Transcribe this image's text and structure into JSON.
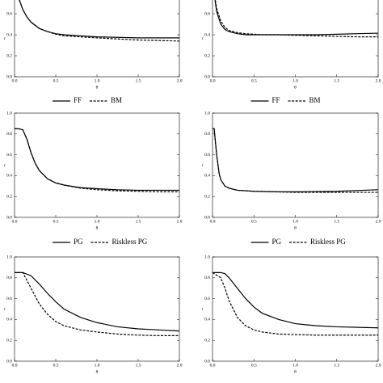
{
  "chart_data": [
    {
      "type": "line",
      "xlabel": "θ",
      "ylabel": "r",
      "xlim": [
        0,
        2
      ],
      "ylim": [
        0,
        1
      ],
      "xticks": [
        {
          "value": 0,
          "label": "0.0"
        },
        {
          "value": 0.5,
          "label": "0.5"
        },
        {
          "value": 1,
          "label": "1.0"
        },
        {
          "value": 1.5,
          "label": "1.5"
        },
        {
          "value": 2,
          "label": "2.0"
        }
      ],
      "yticks": [
        {
          "value": 0,
          "label": "0.0"
        },
        {
          "value": 0.2,
          "label": "0.2"
        },
        {
          "value": 0.4,
          "label": "0.4"
        },
        {
          "value": 0.6,
          "label": "0.6"
        },
        {
          "value": 0.8,
          "label": "0.8"
        },
        {
          "value": 1,
          "label": "1.0"
        }
      ],
      "x": [
        0,
        0.05,
        0.1,
        0.15,
        0.2,
        0.3,
        0.4,
        0.5,
        0.6,
        0.8,
        1.0,
        1.25,
        1.5,
        1.75,
        2.0
      ],
      "series": [
        {
          "name": "FF",
          "color": "#000000",
          "dashed": false,
          "values": [
            0.9,
            0.75,
            0.64,
            0.57,
            0.52,
            0.46,
            0.43,
            0.41,
            0.4,
            0.39,
            0.38,
            0.375,
            0.37,
            0.37,
            0.37
          ]
        },
        {
          "name": "BM",
          "color": "#000000",
          "dashed": true,
          "values": [
            0.9,
            0.75,
            0.64,
            0.57,
            0.52,
            0.46,
            0.43,
            0.405,
            0.39,
            0.38,
            0.37,
            0.36,
            0.35,
            0.345,
            0.34
          ]
        }
      ]
    },
    {
      "type": "line",
      "xlabel": "θ",
      "ylabel": "r",
      "xlim": [
        0,
        2
      ],
      "ylim": [
        0,
        1
      ],
      "xticks": [
        {
          "value": 0,
          "label": "0.0"
        },
        {
          "value": 0.5,
          "label": "0.5"
        },
        {
          "value": 1,
          "label": "1.0"
        },
        {
          "value": 1.5,
          "label": "1.5"
        },
        {
          "value": 2,
          "label": "2.0"
        }
      ],
      "yticks": [
        {
          "value": 0,
          "label": "0.0"
        },
        {
          "value": 0.2,
          "label": "0.2"
        },
        {
          "value": 0.4,
          "label": "0.4"
        },
        {
          "value": 0.6,
          "label": "0.6"
        },
        {
          "value": 0.8,
          "label": "0.8"
        },
        {
          "value": 1,
          "label": "1.0"
        }
      ],
      "x": [
        0,
        0.05,
        0.1,
        0.15,
        0.2,
        0.3,
        0.4,
        0.5,
        0.6,
        0.8,
        1.0,
        1.25,
        1.5,
        1.75,
        2.0
      ],
      "series": [
        {
          "name": "FF",
          "color": "#000000",
          "dashed": false,
          "values": [
            0.9,
            0.62,
            0.5,
            0.45,
            0.43,
            0.41,
            0.4,
            0.4,
            0.4,
            0.4,
            0.4,
            0.4,
            0.405,
            0.41,
            0.415
          ]
        },
        {
          "name": "BM",
          "color": "#000000",
          "dashed": true,
          "values": [
            0.9,
            0.65,
            0.53,
            0.47,
            0.44,
            0.42,
            0.41,
            0.405,
            0.4,
            0.4,
            0.395,
            0.39,
            0.385,
            0.38,
            0.38
          ]
        }
      ]
    },
    {
      "type": "line",
      "xlabel": "θ",
      "ylabel": "r",
      "xlim": [
        0,
        2
      ],
      "ylim": [
        0,
        1
      ],
      "xticks": [
        {
          "value": 0,
          "label": "0.0"
        },
        {
          "value": 0.5,
          "label": "0.5"
        },
        {
          "value": 1,
          "label": "1.0"
        },
        {
          "value": 1.5,
          "label": "1.5"
        },
        {
          "value": 2,
          "label": "2.0"
        }
      ],
      "yticks": [
        {
          "value": 0,
          "label": "0.0"
        },
        {
          "value": 0.2,
          "label": "0.2"
        },
        {
          "value": 0.4,
          "label": "0.4"
        },
        {
          "value": 0.6,
          "label": "0.6"
        },
        {
          "value": 0.8,
          "label": "0.8"
        },
        {
          "value": 1,
          "label": "1.0"
        }
      ],
      "x": [
        0,
        0.05,
        0.1,
        0.15,
        0.2,
        0.25,
        0.3,
        0.4,
        0.5,
        0.6,
        0.8,
        1.0,
        1.25,
        1.5,
        1.75,
        2.0
      ],
      "series": [
        {
          "name": "PG",
          "color": "#000000",
          "dashed": false,
          "values": [
            0.85,
            0.85,
            0.84,
            0.75,
            0.62,
            0.52,
            0.45,
            0.37,
            0.33,
            0.31,
            0.285,
            0.275,
            0.265,
            0.26,
            0.26,
            0.26
          ]
        },
        {
          "name": "Riskless PG",
          "color": "#000000",
          "dashed": true,
          "values": [
            0.85,
            0.85,
            0.84,
            0.75,
            0.62,
            0.52,
            0.45,
            0.37,
            0.33,
            0.31,
            0.28,
            0.265,
            0.255,
            0.25,
            0.245,
            0.245
          ]
        }
      ]
    },
    {
      "type": "line",
      "xlabel": "θ",
      "ylabel": "r",
      "xlim": [
        0,
        2
      ],
      "ylim": [
        0,
        1
      ],
      "xticks": [
        {
          "value": 0,
          "label": "0.0"
        },
        {
          "value": 0.5,
          "label": "0.5"
        },
        {
          "value": 1,
          "label": "1.0"
        },
        {
          "value": 1.5,
          "label": "1.5"
        },
        {
          "value": 2,
          "label": "2.0"
        }
      ],
      "yticks": [
        {
          "value": 0,
          "label": "0.0"
        },
        {
          "value": 0.2,
          "label": "0.2"
        },
        {
          "value": 0.4,
          "label": "0.4"
        },
        {
          "value": 0.6,
          "label": "0.6"
        },
        {
          "value": 0.8,
          "label": "0.8"
        },
        {
          "value": 1,
          "label": "1.0"
        }
      ],
      "x": [
        0,
        0.02,
        0.05,
        0.08,
        0.1,
        0.15,
        0.2,
        0.3,
        0.5,
        0.75,
        1.0,
        1.5,
        2.0
      ],
      "series": [
        {
          "name": "PG",
          "color": "#000000",
          "dashed": false,
          "values": [
            0.85,
            0.85,
            0.6,
            0.42,
            0.36,
            0.3,
            0.28,
            0.26,
            0.25,
            0.245,
            0.245,
            0.25,
            0.265
          ]
        },
        {
          "name": "Riskless PG",
          "color": "#000000",
          "dashed": true,
          "values": [
            0.85,
            0.85,
            0.6,
            0.42,
            0.36,
            0.3,
            0.28,
            0.26,
            0.25,
            0.245,
            0.24,
            0.24,
            0.24
          ]
        }
      ]
    },
    {
      "type": "line",
      "xlabel": "θ",
      "ylabel": "r",
      "xlim": [
        0,
        2
      ],
      "ylim": [
        0,
        1
      ],
      "xticks": [
        {
          "value": 0,
          "label": "0.0"
        },
        {
          "value": 0.5,
          "label": "0.5"
        },
        {
          "value": 1,
          "label": "1.0"
        },
        {
          "value": 1.5,
          "label": "1.5"
        },
        {
          "value": 2,
          "label": "2.0"
        }
      ],
      "yticks": [
        {
          "value": 0,
          "label": "0.0"
        },
        {
          "value": 0.2,
          "label": "0.2"
        },
        {
          "value": 0.4,
          "label": "0.4"
        },
        {
          "value": 0.6,
          "label": "0.6"
        },
        {
          "value": 0.8,
          "label": "0.8"
        },
        {
          "value": 1,
          "label": "1.0"
        }
      ],
      "x": [
        0,
        0.1,
        0.2,
        0.3,
        0.4,
        0.5,
        0.6,
        0.8,
        1.0,
        1.25,
        1.5,
        1.75,
        2.0
      ],
      "series": [
        {
          "color": "#000000",
          "dashed": false,
          "values": [
            0.85,
            0.85,
            0.82,
            0.74,
            0.65,
            0.57,
            0.5,
            0.42,
            0.37,
            0.33,
            0.31,
            0.3,
            0.29
          ]
        },
        {
          "color": "#000000",
          "dashed": true,
          "values": [
            0.85,
            0.85,
            0.7,
            0.55,
            0.45,
            0.38,
            0.34,
            0.3,
            0.28,
            0.26,
            0.25,
            0.245,
            0.245
          ]
        }
      ]
    },
    {
      "type": "line",
      "xlabel": "θ",
      "ylabel": "r",
      "xlim": [
        0,
        2
      ],
      "ylim": [
        0,
        1
      ],
      "xticks": [
        {
          "value": 0,
          "label": "0.0"
        },
        {
          "value": 0.5,
          "label": "0.5"
        },
        {
          "value": 1,
          "label": "1.0"
        },
        {
          "value": 1.5,
          "label": "1.5"
        },
        {
          "value": 2,
          "label": "2.0"
        }
      ],
      "yticks": [
        {
          "value": 0,
          "label": "0.0"
        },
        {
          "value": 0.2,
          "label": "0.2"
        },
        {
          "value": 0.4,
          "label": "0.4"
        },
        {
          "value": 0.6,
          "label": "0.6"
        },
        {
          "value": 0.8,
          "label": "0.8"
        },
        {
          "value": 1,
          "label": "1.0"
        }
      ],
      "x": [
        0,
        0.1,
        0.15,
        0.2,
        0.3,
        0.4,
        0.5,
        0.6,
        0.8,
        1.0,
        1.25,
        1.5,
        2.0
      ],
      "series": [
        {
          "color": "#000000",
          "dashed": false,
          "values": [
            0.85,
            0.85,
            0.84,
            0.8,
            0.7,
            0.6,
            0.52,
            0.46,
            0.4,
            0.36,
            0.34,
            0.33,
            0.32
          ]
        },
        {
          "color": "#000000",
          "dashed": true,
          "values": [
            0.85,
            0.8,
            0.7,
            0.58,
            0.42,
            0.34,
            0.3,
            0.28,
            0.26,
            0.255,
            0.25,
            0.25,
            0.25
          ]
        }
      ]
    }
  ]
}
